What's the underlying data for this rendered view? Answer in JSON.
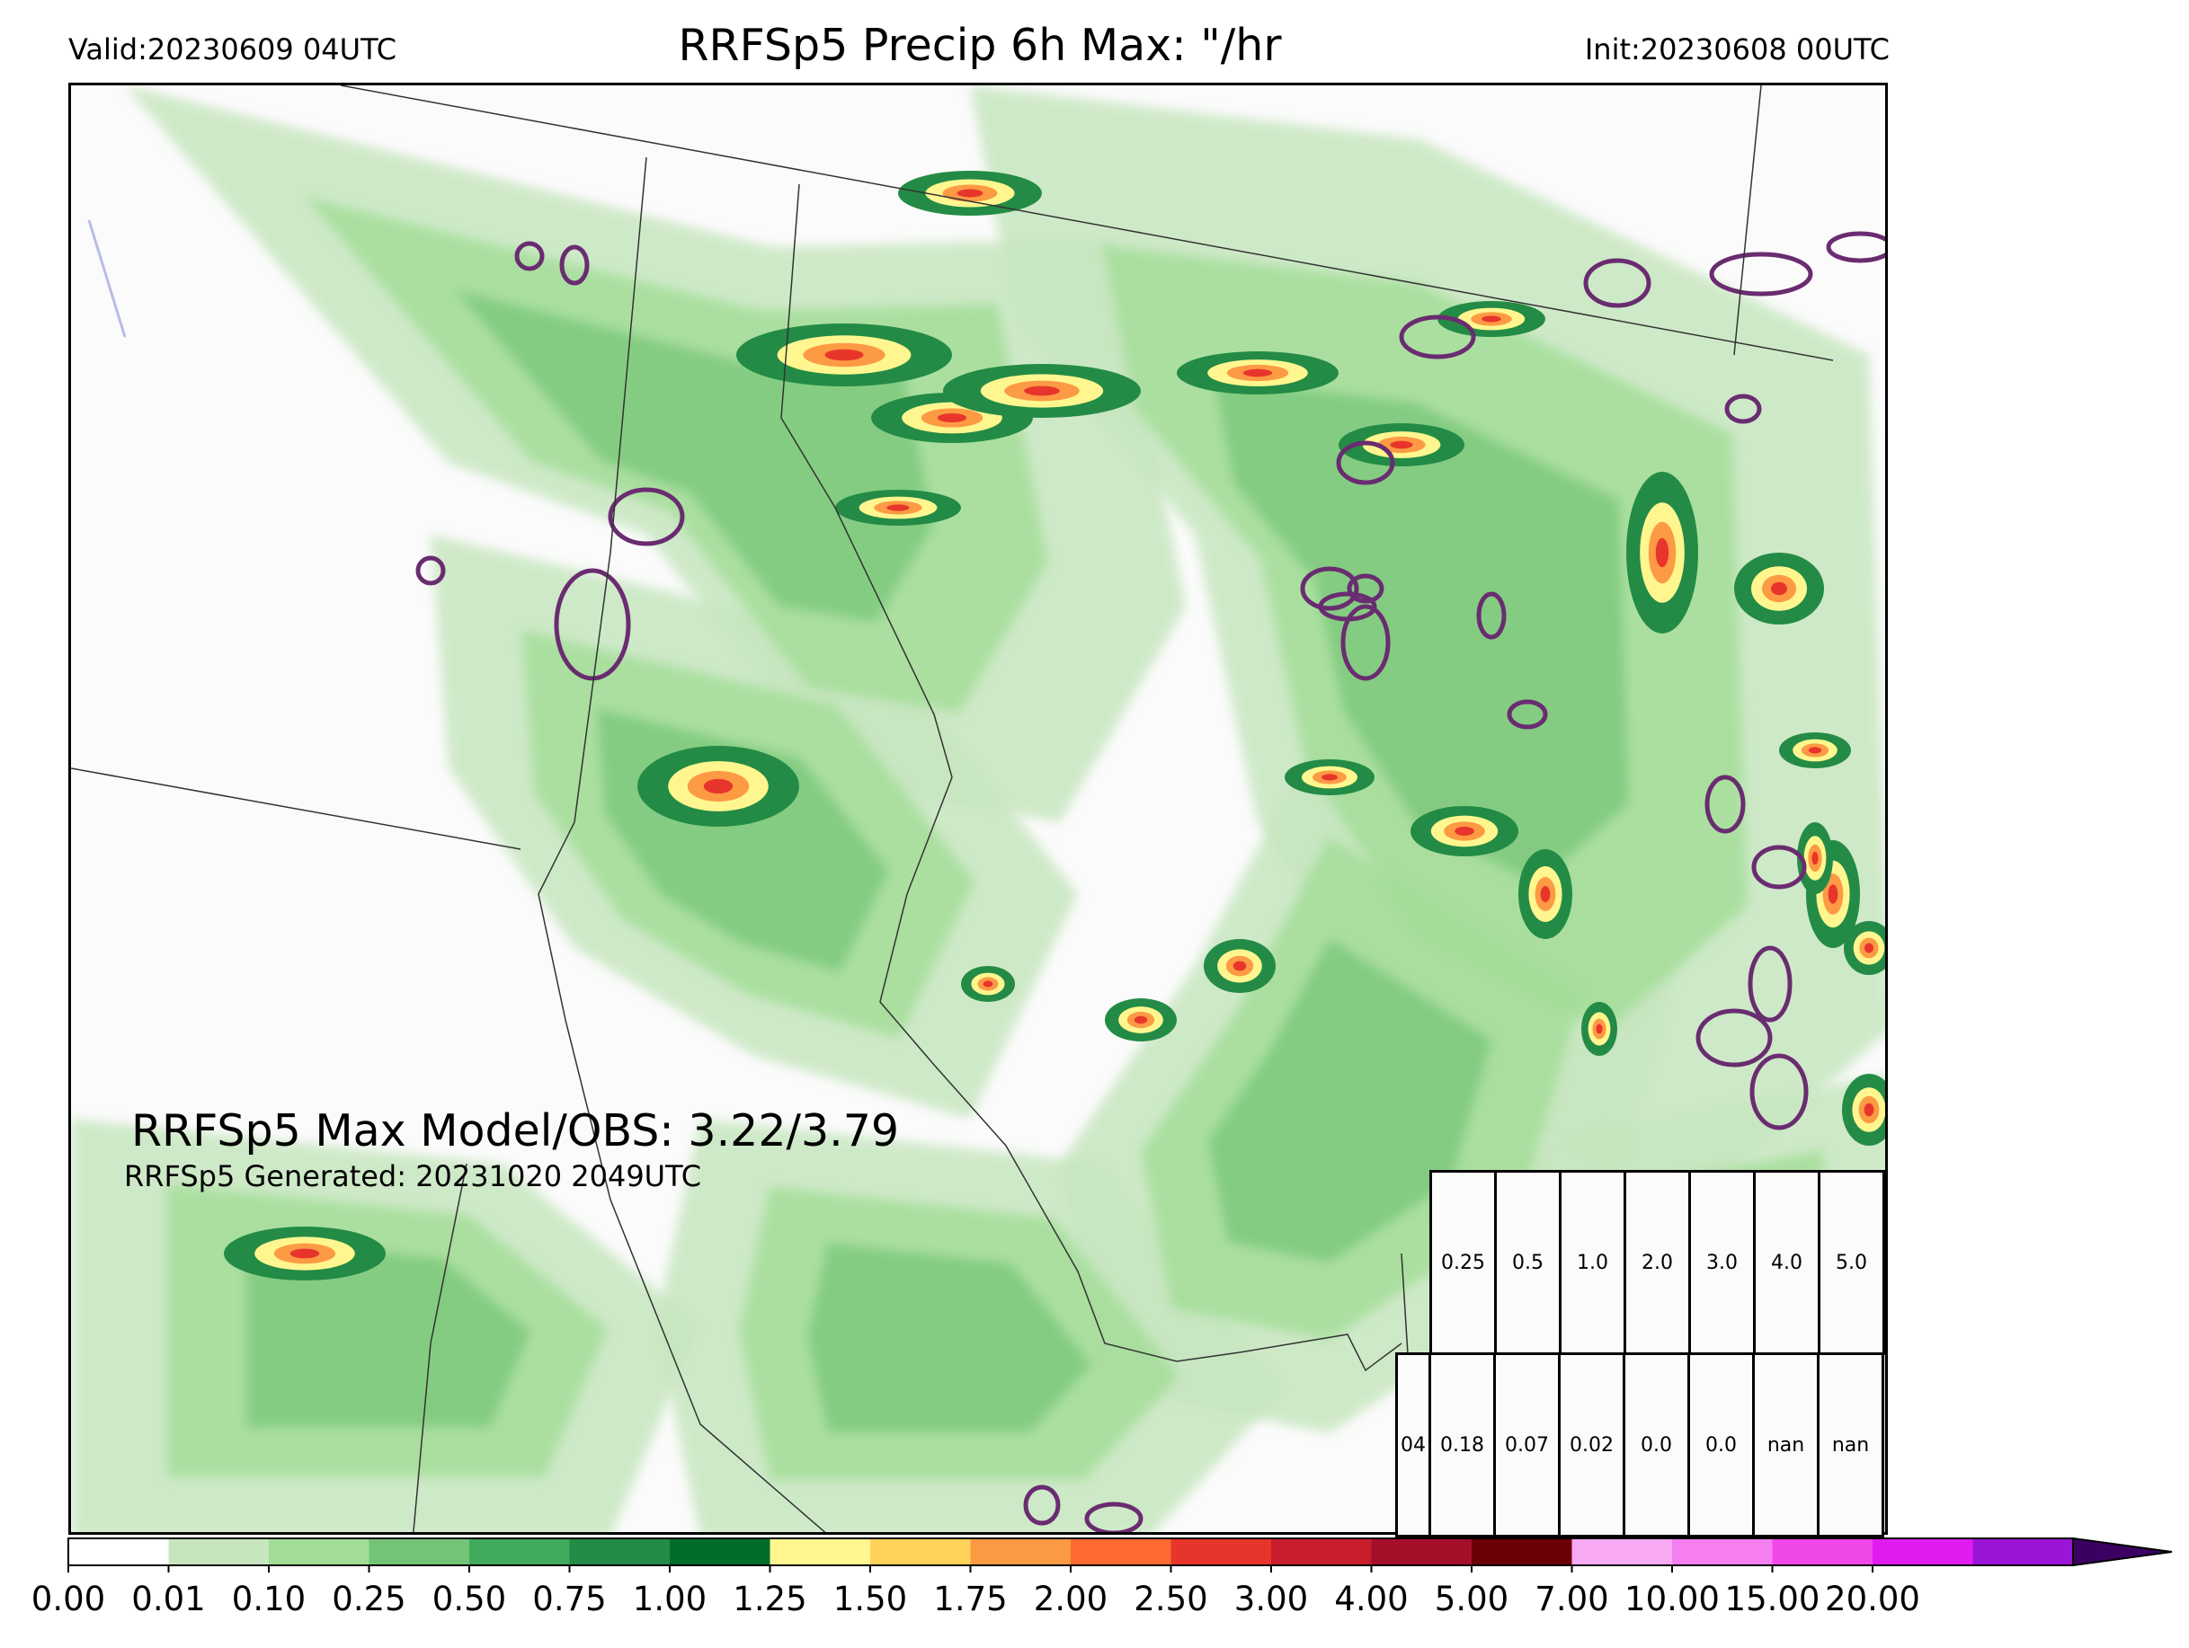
{
  "header": {
    "valid": "Valid:20230609 04UTC",
    "title": "RRFSp5 Precip 6h Max: \"/hr",
    "init": "Init:20230608 00UTC"
  },
  "annotations": {
    "max_model_obs": "RRFSp5 Max Model/OBS: 3.22/3.79",
    "generated": "RRFSp5 Generated: 20231020 2049UTC"
  },
  "stats_table": {
    "thresholds": [
      "0.25",
      "0.5",
      "1.0",
      "2.0",
      "3.0",
      "4.0",
      "5.0"
    ],
    "row_label": "04",
    "scores": [
      "0.18",
      "0.07",
      "0.02",
      "0.0",
      "0.0",
      "nan",
      "nan"
    ]
  },
  "colorbar": {
    "ticks": [
      "0.00",
      "0.01",
      "0.10",
      "0.25",
      "0.50",
      "0.75",
      "1.00",
      "1.25",
      "1.50",
      "1.75",
      "2.00",
      "2.50",
      "3.00",
      "4.00",
      "5.00",
      "7.00",
      "10.00",
      "15.00",
      "20.00"
    ],
    "colors": [
      "#ffffff",
      "#c7e6c0",
      "#a2dd96",
      "#74c476",
      "#41ab5d",
      "#238b45",
      "#006d2c",
      "#fff68f",
      "#ffd35a",
      "#fd9a44",
      "#fc6a31",
      "#e8352b",
      "#c81d2a",
      "#a50f2a",
      "#6b0006",
      "#f9aaf5",
      "#f57ef0",
      "#f048e8",
      "#e01df0",
      "#9b14d8"
    ],
    "extend_color": "#3c0063"
  },
  "colors": {
    "obs_contour": "#6a2c70",
    "border": "#333333"
  }
}
